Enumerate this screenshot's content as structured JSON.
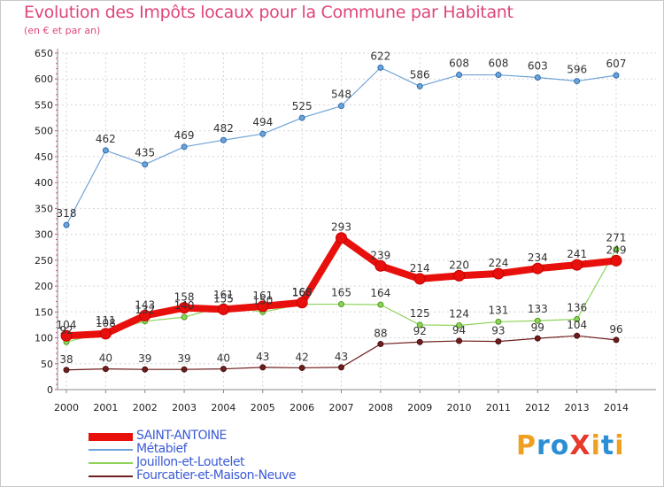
{
  "title": "Evolution des Impôts locaux pour la Commune par Habitant",
  "subtitle": "(en € et par an)",
  "logo": {
    "text": "ProXiti",
    "letters": [
      "P",
      "r",
      "o",
      "X",
      "i",
      "t",
      "i"
    ],
    "colors": [
      "#f0a020",
      "#2b8fd6",
      "#2b8fd6",
      "#e8392c",
      "#f0a020",
      "#2b8fd6",
      "#f0a020"
    ]
  },
  "chart_data": {
    "type": "line",
    "x": [
      "2000",
      "2001",
      "2002",
      "2003",
      "2004",
      "2005",
      "2006",
      "2007",
      "2008",
      "2009",
      "2010",
      "2011",
      "2012",
      "2013",
      "2014"
    ],
    "ylim": [
      0,
      650
    ],
    "yticks": [
      "0",
      "50",
      "100",
      "150",
      "200",
      "250",
      "300",
      "350",
      "400",
      "450",
      "500",
      "550",
      "600",
      "650"
    ],
    "grid": true,
    "legend_position": "bottom-left",
    "series": [
      {
        "name": "SAINT-ANTOINE",
        "color": "#e8100c",
        "values": [
          104,
          108,
          143,
          158,
          155,
          161,
          168,
          293,
          239,
          214,
          220,
          224,
          234,
          241,
          249
        ],
        "labels": [
          "104",
          "108",
          "143",
          "158",
          "155",
          "161",
          "168",
          "293",
          "239",
          "214",
          "220",
          "224",
          "234",
          "241",
          "249"
        ]
      },
      {
        "name": "Métabief",
        "color": "#6ea3d6",
        "values": [
          318,
          462,
          435,
          469,
          482,
          494,
          525,
          548,
          622,
          586,
          608,
          608,
          603,
          596,
          607
        ],
        "labels": [
          "318",
          "462",
          "435",
          "469",
          "482",
          "494",
          "525",
          "548",
          "622",
          "586",
          "608",
          "608",
          "603",
          "596",
          "607"
        ]
      },
      {
        "name": "Jouillon-et-Loutelet",
        "color": "#8fd35a",
        "values": [
          92,
          111,
          132,
          140,
          161,
          150,
          165,
          165,
          164,
          125,
          124,
          131,
          133,
          136,
          271
        ],
        "labels": [
          "92",
          "111",
          "132",
          "140",
          "161",
          "150",
          "165",
          "165",
          "164",
          "125",
          "124",
          "131",
          "133",
          "136",
          "271"
        ]
      },
      {
        "name": "Fourcatier-et-Maison-Neuve",
        "color": "#6e1e1e",
        "values": [
          38,
          40,
          39,
          39,
          40,
          43,
          42,
          43,
          88,
          92,
          94,
          93,
          99,
          104,
          96
        ],
        "labels": [
          "38",
          "40",
          "39",
          "39",
          "40",
          "43",
          "42",
          "43",
          "88",
          "92",
          "94",
          "93",
          "99",
          "104",
          "96"
        ]
      }
    ]
  }
}
